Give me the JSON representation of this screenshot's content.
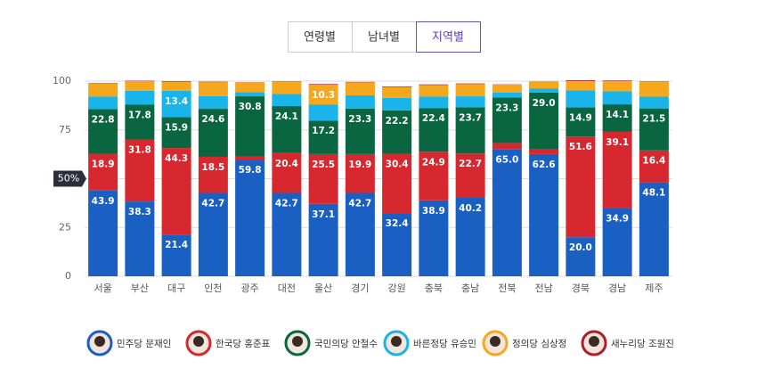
{
  "tabs": [
    "연령별",
    "남녀별",
    "지역별"
  ],
  "selected_tab": 2,
  "chart_data": {
    "type": "stacked-bar",
    "categories": [
      "서울",
      "부산",
      "대구",
      "인천",
      "광주",
      "대전",
      "울산",
      "경기",
      "강원",
      "충북",
      "충남",
      "전북",
      "전남",
      "경북",
      "경남",
      "제주"
    ],
    "ylim": [
      0,
      100
    ],
    "yticks": [
      0,
      25,
      50,
      75,
      100
    ],
    "grid": true,
    "y_marker": {
      "value": 50,
      "label": "50%"
    },
    "series": [
      {
        "name": "민주당 문재인",
        "color": "#1a5fc2",
        "values": [
          43.9,
          38.3,
          21.4,
          42.7,
          59.8,
          42.7,
          37.1,
          42.7,
          32.4,
          38.9,
          40.2,
          65.0,
          62.6,
          20.0,
          34.9,
          48.1
        ],
        "value_labels": [
          "43.9",
          "38.3",
          "21.4",
          "42.7",
          "59.8",
          "42.7",
          "37.1",
          "42.7",
          "32.4",
          "38.9",
          "40.2",
          "65.0",
          "62.6",
          "20.0",
          "34.9",
          "48.1"
        ]
      },
      {
        "name": "한국당 홍준표",
        "color": "#d7282f",
        "values": [
          18.9,
          31.8,
          44.3,
          18.5,
          1.6,
          20.4,
          25.5,
          19.9,
          30.4,
          24.9,
          22.7,
          3.3,
          2.5,
          51.6,
          39.1,
          16.4
        ],
        "value_labels": [
          "18.9",
          "31.8",
          "44.3",
          "18.5",
          null,
          "20.4",
          "25.5",
          "19.9",
          "30.4",
          "24.9",
          "22.7",
          null,
          null,
          "51.6",
          "39.1",
          "16.4"
        ]
      },
      {
        "name": "국민의당 안철수",
        "color": "#0a6640",
        "values": [
          22.8,
          17.8,
          15.9,
          24.6,
          30.8,
          24.1,
          17.2,
          23.3,
          22.2,
          22.4,
          23.7,
          23.3,
          29.0,
          14.9,
          14.1,
          21.5
        ],
        "value_labels": [
          "22.8",
          "17.8",
          "15.9",
          "24.6",
          "30.8",
          "24.1",
          "17.2",
          "23.3",
          "22.2",
          "22.4",
          "23.7",
          "23.3",
          "29.0",
          "14.9",
          "14.1",
          "21.5"
        ]
      },
      {
        "name": "바른정당 유승민",
        "color": "#18b4ea",
        "values": [
          6.5,
          7.2,
          13.4,
          6.5,
          2.2,
          6.3,
          8.1,
          6.8,
          6.4,
          5.9,
          5.6,
          2.6,
          2.2,
          8.8,
          6.7,
          6.0
        ],
        "value_labels": [
          null,
          null,
          "13.4",
          null,
          null,
          null,
          null,
          null,
          null,
          null,
          null,
          null,
          null,
          null,
          null,
          null
        ]
      },
      {
        "name": "정의당 심상정",
        "color": "#f5a81c",
        "values": [
          6.7,
          4.9,
          4.6,
          7.2,
          4.9,
          6.1,
          10.3,
          6.7,
          5.6,
          5.9,
          6.3,
          4.1,
          3.4,
          4.7,
          5.2,
          7.6
        ],
        "value_labels": [
          null,
          null,
          null,
          null,
          null,
          null,
          "10.3",
          null,
          null,
          null,
          null,
          null,
          null,
          null,
          null,
          null
        ]
      },
      {
        "name": "새누리당 조원진",
        "color": "#b01e2a",
        "values": [
          0.2,
          0.2,
          0.3,
          0.2,
          0.1,
          0.2,
          0.3,
          0.2,
          0.3,
          0.3,
          0.3,
          0.1,
          0.1,
          0.4,
          0.3,
          0.2
        ],
        "value_labels": [
          null,
          null,
          null,
          null,
          null,
          null,
          null,
          null,
          null,
          null,
          null,
          null,
          null,
          null,
          null,
          null
        ]
      }
    ]
  }
}
